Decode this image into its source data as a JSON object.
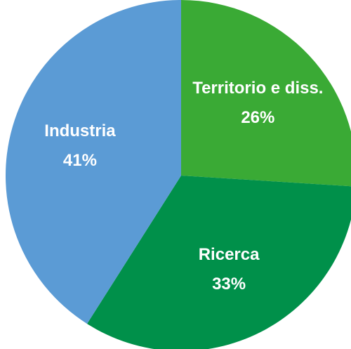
{
  "chart_data": {
    "type": "pie",
    "categories": [
      "Territorio e diss.",
      "Ricerca",
      "Industria"
    ],
    "values": [
      26,
      33,
      41
    ],
    "value_labels": [
      "26%",
      "33%",
      "41%"
    ],
    "colors": [
      "#3aaa35",
      "#00904a",
      "#5b9bd5"
    ]
  }
}
